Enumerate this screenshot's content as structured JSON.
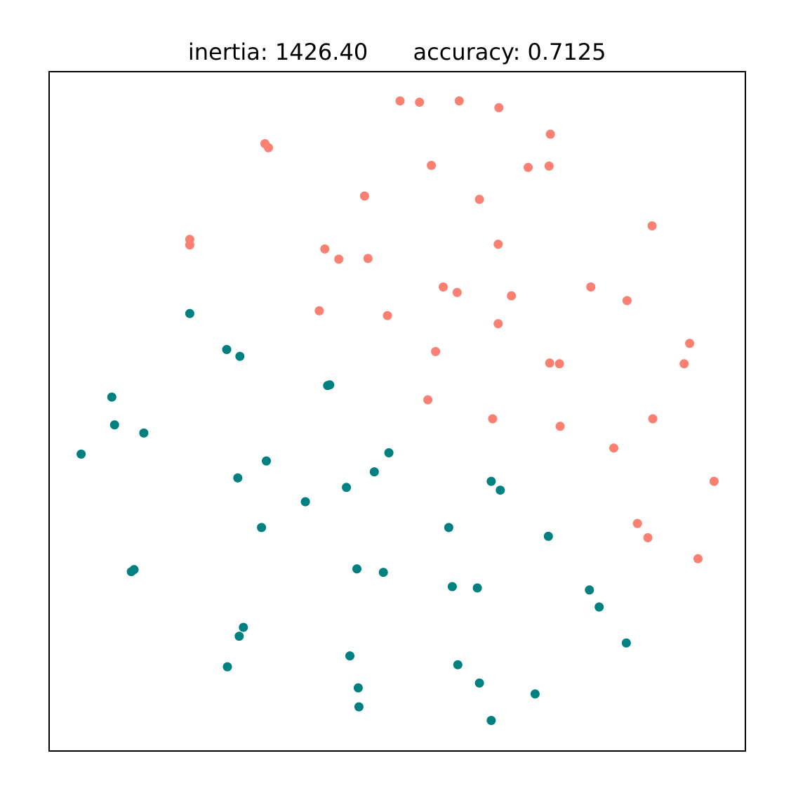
{
  "chart_data": {
    "type": "scatter",
    "title_left": "inertia: 1426.40",
    "title_right": "accuracy: 0.7125",
    "xlim": [
      0,
      100
    ],
    "ylim": [
      0,
      100
    ],
    "grid": false,
    "ticks": false,
    "series": [
      {
        "color": "#fa8072",
        "points": [
          [
            50.4,
            95.7
          ],
          [
            53.2,
            95.5
          ],
          [
            58.9,
            95.7
          ],
          [
            64.6,
            94.7
          ],
          [
            72.0,
            90.8
          ],
          [
            31.0,
            89.4
          ],
          [
            31.5,
            88.8
          ],
          [
            54.9,
            86.2
          ],
          [
            68.8,
            85.9
          ],
          [
            71.8,
            86.1
          ],
          [
            45.3,
            81.7
          ],
          [
            61.8,
            81.2
          ],
          [
            86.6,
            77.3
          ],
          [
            20.2,
            75.3
          ],
          [
            20.2,
            74.5
          ],
          [
            39.6,
            73.9
          ],
          [
            41.6,
            72.4
          ],
          [
            45.8,
            72.5
          ],
          [
            64.5,
            74.6
          ],
          [
            56.6,
            68.3
          ],
          [
            58.6,
            67.5
          ],
          [
            77.8,
            68.3
          ],
          [
            66.4,
            67.0
          ],
          [
            83.0,
            66.3
          ],
          [
            38.8,
            64.8
          ],
          [
            48.6,
            64.1
          ],
          [
            64.5,
            62.9
          ],
          [
            92.0,
            60.0
          ],
          [
            55.5,
            58.8
          ],
          [
            71.9,
            57.1
          ],
          [
            73.3,
            57.0
          ],
          [
            91.2,
            57.0
          ],
          [
            54.4,
            51.7
          ],
          [
            63.7,
            48.9
          ],
          [
            73.4,
            47.8
          ],
          [
            86.7,
            48.9
          ],
          [
            81.1,
            44.6
          ],
          [
            95.5,
            39.7
          ],
          [
            84.5,
            33.5
          ],
          [
            86.0,
            31.4
          ],
          [
            93.2,
            28.3
          ]
        ]
      },
      {
        "color": "#008080",
        "points": [
          [
            20.2,
            64.4
          ],
          [
            25.5,
            59.1
          ],
          [
            27.4,
            58.1
          ],
          [
            40.0,
            53.8
          ],
          [
            40.3,
            53.9
          ],
          [
            9.0,
            52.1
          ],
          [
            9.4,
            48.0
          ],
          [
            13.6,
            46.8
          ],
          [
            4.6,
            43.7
          ],
          [
            31.2,
            42.7
          ],
          [
            27.1,
            40.2
          ],
          [
            48.8,
            43.9
          ],
          [
            46.7,
            41.1
          ],
          [
            42.7,
            38.8
          ],
          [
            36.8,
            36.7
          ],
          [
            63.5,
            39.7
          ],
          [
            64.8,
            38.4
          ],
          [
            30.5,
            32.9
          ],
          [
            57.4,
            32.9
          ],
          [
            71.7,
            31.6
          ],
          [
            12.2,
            26.7
          ],
          [
            11.8,
            26.4
          ],
          [
            44.2,
            26.8
          ],
          [
            48.0,
            26.3
          ],
          [
            57.9,
            24.2
          ],
          [
            61.5,
            24.0
          ],
          [
            77.6,
            23.7
          ],
          [
            79.0,
            21.2
          ],
          [
            27.9,
            18.2
          ],
          [
            27.3,
            16.9
          ],
          [
            82.9,
            15.9
          ],
          [
            43.2,
            14.0
          ],
          [
            25.6,
            12.4
          ],
          [
            58.7,
            12.7
          ],
          [
            61.8,
            10.0
          ],
          [
            44.4,
            9.3
          ],
          [
            44.5,
            6.5
          ],
          [
            69.8,
            8.4
          ],
          [
            63.5,
            4.5
          ]
        ]
      }
    ]
  }
}
